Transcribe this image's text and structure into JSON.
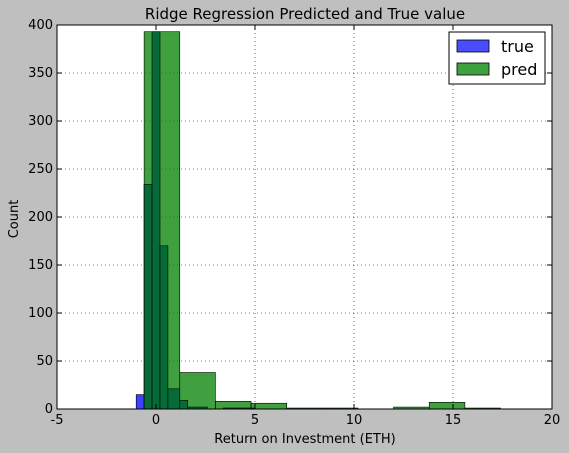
{
  "chart_data": {
    "type": "bar",
    "title": "Ridge Regression Predicted and True value",
    "xlabel": "Return on Investment (ETH)",
    "ylabel": "Count",
    "xlim": [
      -5,
      20
    ],
    "ylim": [
      0,
      400
    ],
    "x_ticks": [
      -5,
      0,
      5,
      10,
      15,
      20
    ],
    "y_ticks": [
      0,
      50,
      100,
      150,
      200,
      250,
      300,
      350,
      400
    ],
    "grid": true,
    "legend_position": "top-right",
    "colors": {
      "true": "#0000ff",
      "pred": "#008000",
      "overlap": "#006633",
      "background": "#bfbfbf",
      "plot_background": "#ffffff"
    },
    "series": [
      {
        "name": "true",
        "bins": [
          {
            "x0": -1.0,
            "x1": -0.6,
            "value": 15
          },
          {
            "x0": -0.6,
            "x1": -0.2,
            "value": 234
          },
          {
            "x0": -0.2,
            "x1": 0.2,
            "value": 393
          },
          {
            "x0": 0.2,
            "x1": 0.6,
            "value": 170
          },
          {
            "x0": 0.6,
            "x1": 1.2,
            "value": 21
          },
          {
            "x0": 1.2,
            "x1": 1.6,
            "value": 9
          },
          {
            "x0": 1.6,
            "x1": 2.6,
            "value": 2
          },
          {
            "x0": 3.4,
            "x1": 4.2,
            "value": 1
          },
          {
            "x0": 4.2,
            "x1": 5.0,
            "value": 1
          }
        ]
      },
      {
        "name": "pred",
        "bins": [
          {
            "x0": -0.6,
            "x1": 1.2,
            "value": 393
          },
          {
            "x0": 1.2,
            "x1": 3.0,
            "value": 38
          },
          {
            "x0": 3.0,
            "x1": 4.8,
            "value": 8
          },
          {
            "x0": 4.8,
            "x1": 6.6,
            "value": 6
          },
          {
            "x0": 6.6,
            "x1": 8.4,
            "value": 1
          },
          {
            "x0": 8.4,
            "x1": 10.2,
            "value": 1
          },
          {
            "x0": 10.2,
            "x1": 12.0,
            "value": 0
          },
          {
            "x0": 12.0,
            "x1": 13.8,
            "value": 2
          },
          {
            "x0": 13.8,
            "x1": 15.6,
            "value": 7
          },
          {
            "x0": 15.6,
            "x1": 17.4,
            "value": 1
          }
        ]
      }
    ],
    "legend": [
      "true",
      "pred"
    ]
  }
}
